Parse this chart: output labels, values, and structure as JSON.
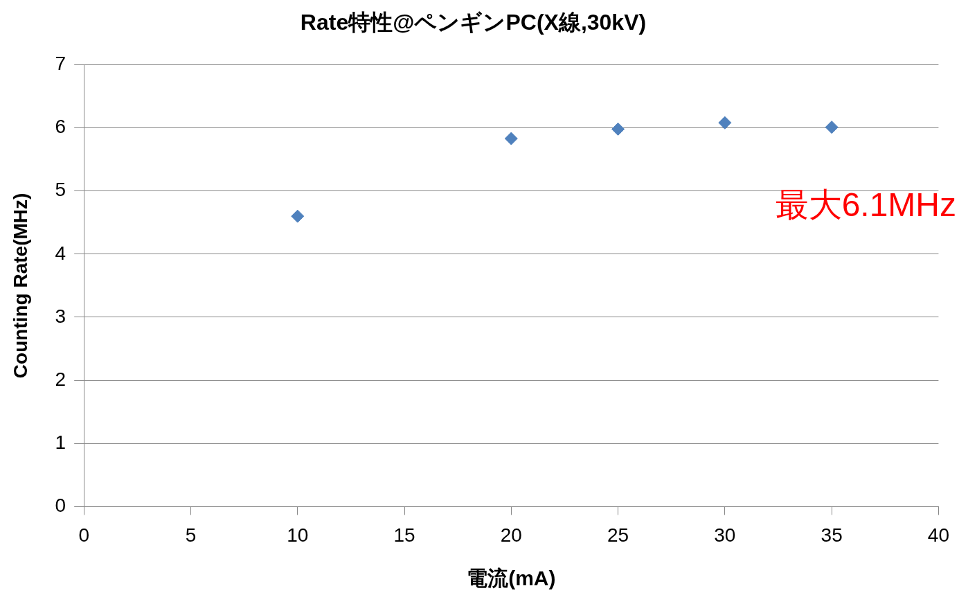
{
  "chart_data": {
    "type": "scatter",
    "title": "Rate特性@ペンギンPC(X線,30kV)",
    "xlabel": "電流(mA)",
    "ylabel": "Counting Rate(MHz)",
    "x": [
      10,
      20,
      25,
      30,
      35
    ],
    "series": [
      {
        "color": "#4f81bd",
        "values": [
          4.6,
          5.83,
          5.98,
          6.08,
          6.01
        ]
      }
    ],
    "xlim": [
      0,
      40
    ],
    "xticks": [
      0,
      5,
      10,
      15,
      20,
      25,
      30,
      35,
      40
    ],
    "ylim": [
      0,
      7
    ],
    "yticks": [
      0,
      1,
      2,
      3,
      4,
      5,
      6,
      7
    ],
    "grid": "y",
    "legend": false,
    "marker": "diamond",
    "annotations": [
      "最大6.1MHz"
    ]
  }
}
